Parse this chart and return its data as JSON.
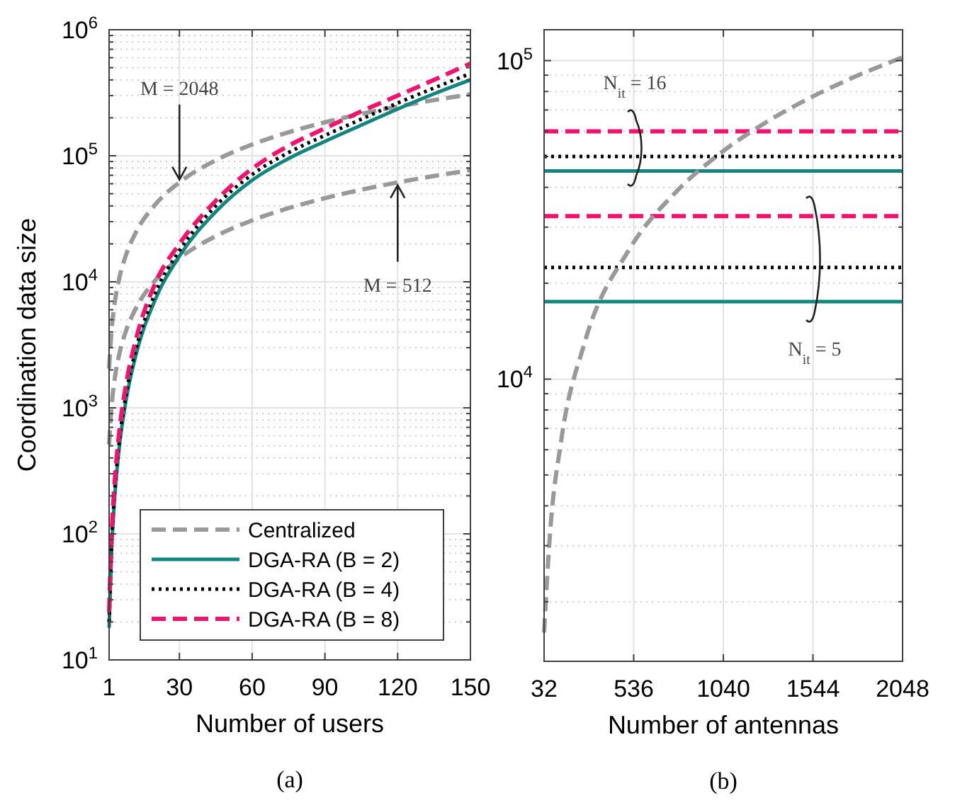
{
  "chart_data": [
    {
      "type": "line",
      "xlabel": "Number of users",
      "ylabel": "Coordination data size",
      "log": "y",
      "grid": true,
      "legend": "bottom left",
      "xlim": [
        1,
        150
      ],
      "xticks": [
        1,
        30,
        60,
        90,
        120,
        150
      ],
      "ylim": [
        10,
        1000000
      ],
      "yticks": [
        {
          "value": 10,
          "label": "10$^{1}$"
        },
        {
          "value": 100,
          "label": "10$^{2}$"
        },
        {
          "value": 1000,
          "label": "10$^{3}$"
        },
        {
          "value": 10000,
          "label": "10$^{4}$"
        },
        {
          "value": 100000,
          "label": "10$^{5}$"
        },
        {
          "value": 1000000,
          "label": "10$^{6}$"
        }
      ],
      "x": [
        1,
        2,
        3,
        5,
        8,
        12,
        20,
        30,
        45,
        60,
        75,
        90,
        105,
        120,
        135,
        150
      ],
      "series": [
        {
          "name": "Centralized",
          "color": "#999999",
          "line_style": "dashed",
          "values": [
            2048,
            4096,
            6144,
            10240,
            16384,
            24576,
            40960,
            61440,
            92160,
            122880,
            153600,
            184320,
            215040,
            245760,
            276480,
            307200
          ]
        },
        {
          "color": "#999999",
          "line_style": "dashed",
          "values": [
            512,
            1024,
            1536,
            2560,
            4096,
            6144,
            10240,
            15360,
            23040,
            30720,
            38400,
            46080,
            53760,
            61440,
            69120,
            76800
          ]
        },
        {
          "name": "DGA-RA (B = 2)",
          "color": "#13857f",
          "line_style": "solid",
          "values": [
            18,
            72,
            160,
            450,
            1150,
            2600,
            7200,
            16000,
            36000,
            64000,
            95000,
            130000,
            175000,
            235000,
            310000,
            400000
          ]
        },
        {
          "name": "DGA-RA (B = 4)",
          "color": "#000000",
          "line_style": "dotted",
          "values": [
            20,
            80,
            180,
            500,
            1280,
            2880,
            8100,
            17700,
            40000,
            71000,
            106000,
            145000,
            195000,
            262000,
            345000,
            450000
          ]
        },
        {
          "name": "DGA-RA (B = 8)",
          "color": "#f0146e",
          "line_style": "dashed",
          "values": [
            24,
            96,
            215,
            600,
            1540,
            3450,
            9700,
            20000,
            44000,
            79000,
            120000,
            165000,
            225000,
            300000,
            400000,
            540000
          ]
        }
      ],
      "annotations": [
        {
          "text": "M = 2048",
          "x": 30,
          "y": 61440
        },
        {
          "text": "M = 512",
          "x": 120,
          "y": 61440
        },
        "(a)"
      ]
    },
    {
      "type": "line",
      "xlabel": "Number of antennas",
      "log": "y",
      "grid": true,
      "xlim": [
        32,
        2048
      ],
      "xticks": [
        32,
        536,
        1040,
        1544,
        2048
      ],
      "ylim": [
        1300,
        125000
      ],
      "yticks": [
        {
          "value": 10000,
          "label": "10$^{4}$"
        },
        {
          "value": 100000,
          "label": "10$^{5}$"
        }
      ],
      "series": [
        {
          "color": "#13857f",
          "line_style": "solid",
          "x": [
            32,
            2048
          ],
          "values": [
            45000,
            45000
          ]
        },
        {
          "color": "#000000",
          "line_style": "dotted",
          "x": [
            32,
            2048
          ],
          "values": [
            50000,
            50000
          ]
        },
        {
          "color": "#f0146e",
          "line_style": "dashed",
          "x": [
            32,
            2048
          ],
          "values": [
            60000,
            60000
          ]
        },
        {
          "color": "#13857f",
          "line_style": "solid",
          "x": [
            32,
            2048
          ],
          "values": [
            17500,
            17500
          ]
        },
        {
          "color": "#000000",
          "line_style": "dotted",
          "x": [
            32,
            2048
          ],
          "values": [
            22400,
            22400
          ]
        },
        {
          "color": "#f0146e",
          "line_style": "dashed",
          "x": [
            32,
            2048
          ],
          "values": [
            32500,
            32500
          ]
        },
        {
          "color": "#999999",
          "line_style": "dashed",
          "x": [
            32,
            64,
            128,
            256,
            512,
            768,
            1024,
            1280,
            1536,
            1792,
            2048
          ],
          "values": [
            1600,
            3200,
            6400,
            12800,
            25600,
            38400,
            51200,
            64000,
            76800,
            89600,
            102400
          ]
        }
      ],
      "annotations": [
        "N$_{it}$ = 16",
        "N$_{it}$ = 5",
        "(b)"
      ]
    }
  ]
}
